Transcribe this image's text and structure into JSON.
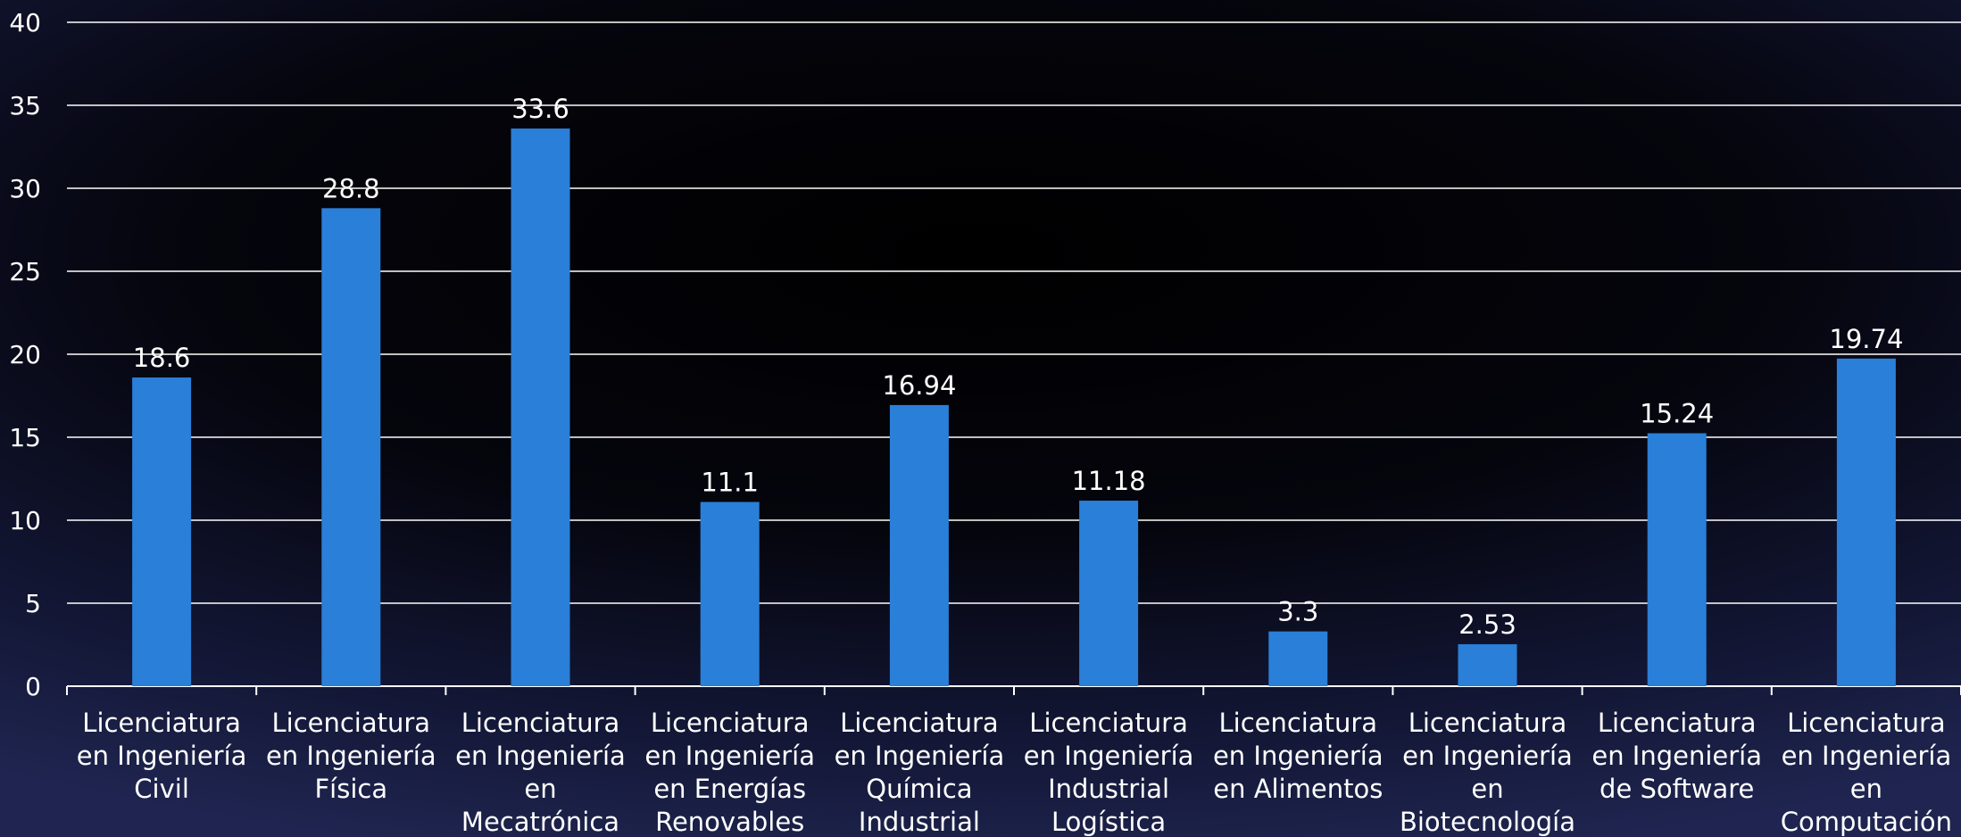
{
  "chart_data": {
    "type": "bar",
    "title": "",
    "xlabel": "",
    "ylabel": "",
    "ylim": [
      0,
      40
    ],
    "yticks": [
      0,
      5,
      10,
      15,
      20,
      25,
      30,
      35,
      40
    ],
    "grid": true,
    "legend": "none",
    "categories": [
      [
        "Licenciatura",
        "en Ingeniería",
        "Civil"
      ],
      [
        "Licenciatura",
        "en Ingeniería",
        "Física"
      ],
      [
        "Licenciatura",
        "en Ingeniería",
        "en",
        "Mecatrónica"
      ],
      [
        "Licenciatura",
        "en Ingeniería",
        "en Energías",
        "Renovables"
      ],
      [
        "Licenciatura",
        "en Ingeniería",
        "Química",
        "Industrial"
      ],
      [
        "Licenciatura",
        "en Ingeniería",
        "Industrial",
        "Logística"
      ],
      [
        "Licenciatura",
        "en Ingeniería",
        "en Alimentos"
      ],
      [
        "Licenciatura",
        "en Ingeniería",
        "en",
        "Biotecnología"
      ],
      [
        "Licenciatura",
        "en Ingeniería",
        "de Software"
      ],
      [
        "Licenciatura",
        "en Ingeniería",
        "en",
        "Computación"
      ]
    ],
    "values": [
      18.6,
      28.8,
      33.6,
      11.1,
      16.94,
      11.18,
      3.3,
      2.53,
      15.24,
      19.74
    ],
    "data_labels": [
      "18.6",
      "28.8",
      "33.6",
      "11.1",
      "16.94",
      "11.18",
      "3.3",
      "2.53",
      "15.24",
      "19.74"
    ],
    "colors": {
      "bar": "#2a7fd8",
      "grid": "#ffffff",
      "text": "#ffffff"
    }
  }
}
